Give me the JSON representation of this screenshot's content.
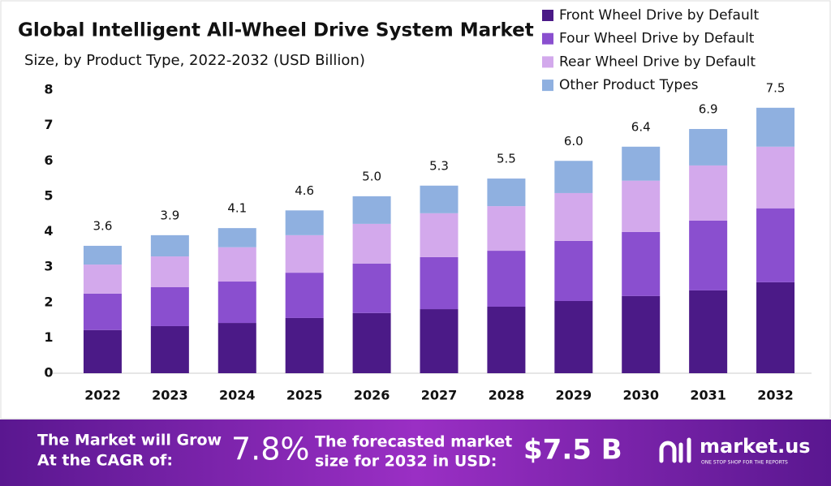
{
  "chart_data": {
    "type": "stacked_bar",
    "title": "Global Intelligent All-Wheel Drive System Market",
    "subtitle": "Size, by Product Type, 2022-2032 (USD Billion)",
    "categories": [
      "2022",
      "2023",
      "2024",
      "2025",
      "2026",
      "2027",
      "2028",
      "2029",
      "2030",
      "2031",
      "2032"
    ],
    "series": [
      {
        "name": "Front Wheel Drive by Default",
        "color": "#4b1a87",
        "values": [
          1.22,
          1.33,
          1.42,
          1.56,
          1.7,
          1.81,
          1.88,
          2.04,
          2.18,
          2.34,
          2.57
        ]
      },
      {
        "name": "Four Wheel Drive by Default",
        "color": "#8a4fcf",
        "values": [
          1.03,
          1.1,
          1.17,
          1.28,
          1.4,
          1.47,
          1.58,
          1.7,
          1.81,
          1.97,
          2.09
        ]
      },
      {
        "name": "Rear Wheel Drive by Default",
        "color": "#d3a9ec",
        "values": [
          0.82,
          0.87,
          0.97,
          1.06,
          1.12,
          1.24,
          1.26,
          1.35,
          1.45,
          1.56,
          1.74
        ]
      },
      {
        "name": "Other Product Types",
        "color": "#8fb0e0",
        "values": [
          0.53,
          0.6,
          0.54,
          0.7,
          0.78,
          0.78,
          0.78,
          0.91,
          0.96,
          1.03,
          1.1
        ]
      }
    ],
    "totals": [
      3.6,
      3.9,
      4.1,
      4.6,
      5.0,
      5.3,
      5.5,
      6.0,
      6.4,
      6.9,
      7.5
    ],
    "totals_labels": [
      "3.6",
      "3.9",
      "4.1",
      "4.6",
      "5.0",
      "5.3",
      "5.5",
      "6.0",
      "6.4",
      "6.9",
      "7.5"
    ],
    "ylim": [
      0,
      8
    ],
    "yticks": [
      0,
      1,
      2,
      3,
      4,
      5,
      6,
      7,
      8
    ],
    "legend": "top-right"
  },
  "banner": {
    "cagr_text": [
      "The Market will Grow",
      "At the CAGR of:"
    ],
    "cagr": "7.8%",
    "forecast_text": [
      "The forecasted market",
      "size for 2032 in USD:"
    ],
    "forecast": "$7.5 B",
    "brand": "market.us",
    "tagline": "ONE STOP SHOP FOR THE REPORTS"
  }
}
